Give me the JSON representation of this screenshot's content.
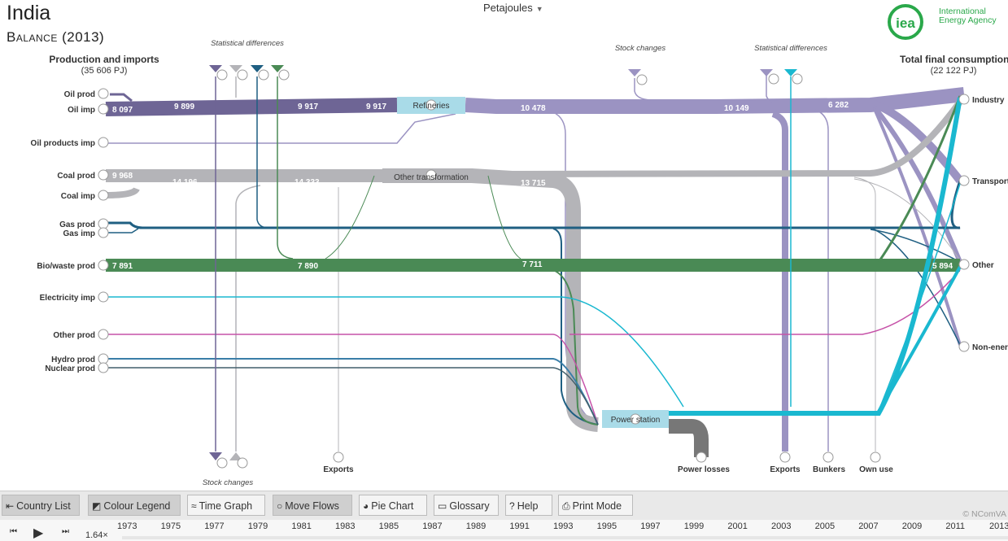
{
  "header": {
    "country": "India",
    "subtitle": "Balance (2013)",
    "unit": "Petajoules"
  },
  "logo": {
    "abbr": "iea",
    "line1": "International",
    "line2": "Energy Agency"
  },
  "left_column": {
    "title": "Production and imports",
    "total": "(35 606 PJ)"
  },
  "right_column": {
    "title": "Total final consumption",
    "total": "(22 122 PJ)"
  },
  "colors": {
    "oil": "#6e6595",
    "oil_products": "#9b93c2",
    "coal": "#b4b4b8",
    "gas": "#1f5f82",
    "biowaste": "#4a8a55",
    "electricity": "#1ab8d0",
    "other_prod": "#c652a8",
    "hydro": "#3a7ea8",
    "nuclear": "#425f6b",
    "losses": "#777777",
    "process": "#a9dbe8"
  },
  "sources": [
    {
      "id": "oil_prod",
      "label": "Oil prod"
    },
    {
      "id": "oil_imp",
      "label": "Oil imp"
    },
    {
      "id": "oil_products_imp",
      "label": "Oil products imp"
    },
    {
      "id": "coal_prod",
      "label": "Coal prod"
    },
    {
      "id": "coal_imp",
      "label": "Coal imp"
    },
    {
      "id": "gas_prod",
      "label": "Gas prod"
    },
    {
      "id": "gas_imp",
      "label": "Gas imp"
    },
    {
      "id": "biowaste_prod",
      "label": "Bio/waste prod"
    },
    {
      "id": "electricity_imp",
      "label": "Electricity imp"
    },
    {
      "id": "other_prod",
      "label": "Other prod"
    },
    {
      "id": "hydro_prod",
      "label": "Hydro prod"
    },
    {
      "id": "nuclear_prod",
      "label": "Nuclear prod"
    }
  ],
  "processes": [
    {
      "id": "refineries",
      "label": "Refineries"
    },
    {
      "id": "other_transformation",
      "label": "Other transformation"
    },
    {
      "id": "power_station",
      "label": "Power station"
    }
  ],
  "sinks": [
    {
      "id": "industry",
      "label": "Industry"
    },
    {
      "id": "transport",
      "label": "Transport"
    },
    {
      "id": "other",
      "label": "Other"
    },
    {
      "id": "non_energy",
      "label": "Non-energy"
    }
  ],
  "bottom_sinks": [
    {
      "id": "exports_1",
      "label": "Exports"
    },
    {
      "id": "power_losses",
      "label": "Power losses"
    },
    {
      "id": "exports_2",
      "label": "Exports"
    },
    {
      "id": "bunkers",
      "label": "Bunkers"
    },
    {
      "id": "own_use",
      "label": "Own use"
    }
  ],
  "annotations": {
    "stat_diff_1": "Statistical differences",
    "stock_changes_top": "Stock  changes",
    "stat_diff_2": "Statistical differences",
    "stock_changes_bottom": "Stock changes"
  },
  "flow_values": {
    "oil_imp": "8 097",
    "oil_a": "9 899",
    "oil_b": "9 917",
    "oil_c": "9 917",
    "oilp_a": "10 478",
    "oilp_b": "10 149",
    "oilp_c": "6 282",
    "coal_prod": "9 968",
    "coal_a": "14 196",
    "coal_b": "14 333",
    "coal_c": "13 715",
    "bio_prod": "7 891",
    "bio_a": "7 890",
    "bio_b": "7 711",
    "bio_c": "5 894"
  },
  "toolbar": {
    "country_list": "Country List",
    "colour_legend": "Colour Legend",
    "time_graph": "Time Graph",
    "move_flows": "Move Flows",
    "pie_chart": "Pie Chart",
    "glossary": "Glossary",
    "help": "Help",
    "print_mode": "Print Mode",
    "credit": "© NComVA"
  },
  "timeline": {
    "speed": "1.64×",
    "years": [
      "1973",
      "1975",
      "1977",
      "1979",
      "1981",
      "1983",
      "1985",
      "1987",
      "1989",
      "1991",
      "1993",
      "1995",
      "1997",
      "1999",
      "2001",
      "2003",
      "2005",
      "2007",
      "2009",
      "2011",
      "2013"
    ]
  }
}
